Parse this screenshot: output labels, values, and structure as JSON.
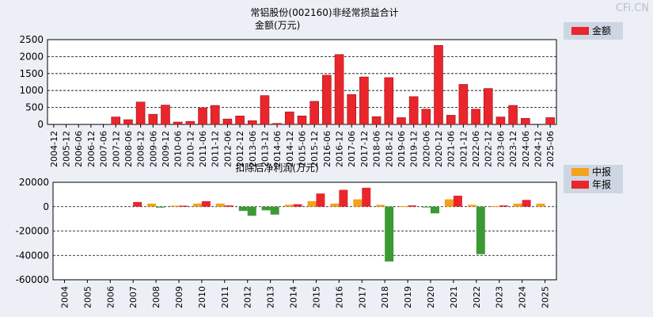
{
  "watermark": "CFi.CN",
  "colors": {
    "background": "#ecf0f6",
    "plot_background": "#ffffff",
    "bar_red": "#e8262c",
    "bar_red_dark": "#9c1216",
    "bar_orange": "#f4a11c",
    "bar_green": "#3c9a35",
    "legend_bg": "#cdd6e2"
  },
  "chart_data": [
    {
      "type": "bar",
      "title": "常铝股份(002160)非经常损益合计",
      "ylabel": "金额(万元)",
      "legend": [
        {
          "label": "金额",
          "color": "#e8262c"
        }
      ],
      "ylim": [
        0,
        2500
      ],
      "yticks": [
        0,
        500,
        1000,
        1500,
        2000,
        2500
      ],
      "ytick_labels": [
        "0",
        "500",
        "1000",
        "1500",
        "2000",
        "2500"
      ],
      "categories": [
        "2004-12",
        "2005-12",
        "2006-06",
        "2006-12",
        "2007-06",
        "2007-12",
        "2008-06",
        "2008-12",
        "2009-06",
        "2009-12",
        "2010-06",
        "2010-12",
        "2011-06",
        "2011-12",
        "2012-06",
        "2012-12",
        "2013-06",
        "2013-12",
        "2014-06",
        "2014-12",
        "2015-06",
        "2015-12",
        "2016-06",
        "2016-12",
        "2017-06",
        "2017-12",
        "2018-06",
        "2018-12",
        "2019-06",
        "2019-12",
        "2020-06",
        "2020-12",
        "2021-06",
        "2021-12",
        "2022-06",
        "2022-12",
        "2023-06",
        "2023-12",
        "2024-06",
        "2024-12",
        "2025-06"
      ],
      "values": [
        0,
        0,
        0,
        0,
        0,
        220,
        140,
        660,
        300,
        570,
        70,
        90,
        490,
        560,
        160,
        250,
        110,
        850,
        30,
        370,
        250,
        680,
        1450,
        2060,
        880,
        1400,
        230,
        1380,
        200,
        820,
        450,
        2330,
        270,
        1180,
        450,
        1060,
        220,
        560,
        180,
        0,
        200
      ]
    },
    {
      "type": "bar",
      "title": "扣除后净利润(万元)",
      "legend": [
        {
          "label": "中报",
          "color": "#f4a11c"
        },
        {
          "label": "年报",
          "color": "#e8262c"
        }
      ],
      "ylim": [
        -60000,
        20000
      ],
      "yticks": [
        -60000,
        -40000,
        -20000,
        0,
        20000
      ],
      "ytick_labels": [
        "-60000",
        "-40000",
        "-20000",
        "0",
        "20000"
      ],
      "categories": [
        "2004",
        "2005",
        "2006",
        "2007",
        "2008",
        "2009",
        "2010",
        "2011",
        "2012",
        "2013",
        "2014",
        "2015",
        "2016",
        "2017",
        "2018",
        "2019",
        "2020",
        "2021",
        "2022",
        "2023",
        "2024",
        "2025"
      ],
      "series": [
        {
          "name": "中报",
          "values": [
            null,
            null,
            null,
            null,
            2500,
            800,
            2500,
            2500,
            -3500,
            -3000,
            1500,
            4500,
            2500,
            6000,
            1500,
            500,
            -400,
            6000,
            1500,
            500,
            2500,
            2500
          ]
        },
        {
          "name": "年报",
          "values": [
            null,
            null,
            null,
            3800,
            -800,
            800,
            4500,
            1000,
            -7500,
            -6500,
            2000,
            10800,
            13800,
            15500,
            -45000,
            1000,
            -5500,
            9000,
            -39000,
            1000,
            5500,
            null
          ]
        }
      ]
    }
  ]
}
